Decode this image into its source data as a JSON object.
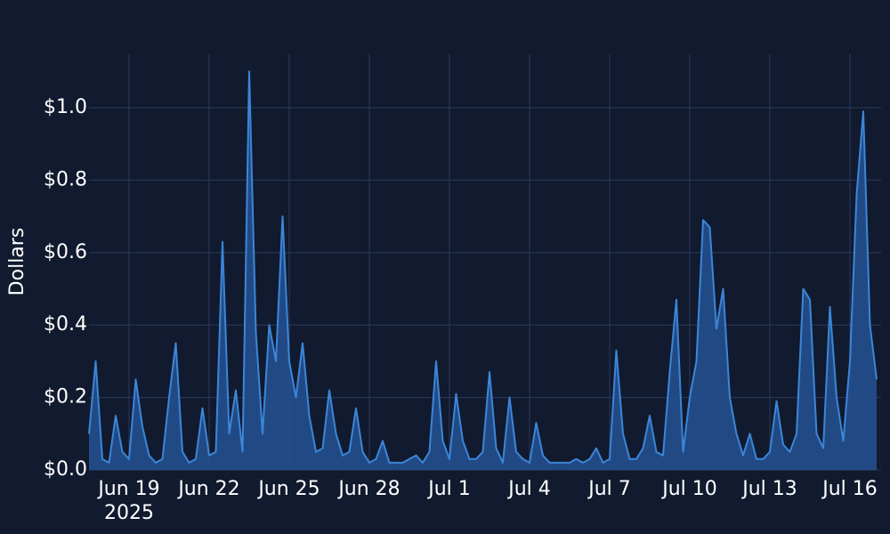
{
  "chart_data": {
    "type": "area",
    "y_label": "Dollars",
    "x_year_label": "2025",
    "color": "#3b86d8",
    "fill_color": "#24508f",
    "grid": true,
    "ylim": [
      0,
      1.15
    ],
    "yticks": [
      {
        "value": 0,
        "label": "$0.0"
      },
      {
        "value": 0.2,
        "label": "$0.2"
      },
      {
        "value": 0.4,
        "label": "$0.4"
      },
      {
        "value": 0.6,
        "label": "$0.6"
      },
      {
        "value": 0.8,
        "label": "$0.8"
      },
      {
        "value": 1.0,
        "label": "$1.0"
      }
    ],
    "xlim": [
      "2025-06-17 12:00",
      "2025-07-17 04:00"
    ],
    "xticks": [
      {
        "value": "2025-06-19",
        "label": "Jun 19"
      },
      {
        "value": "2025-06-22",
        "label": "Jun 22"
      },
      {
        "value": "2025-06-25",
        "label": "Jun 25"
      },
      {
        "value": "2025-06-28",
        "label": "Jun 28"
      },
      {
        "value": "2025-07-01",
        "label": "Jul 1"
      },
      {
        "value": "2025-07-04",
        "label": "Jul 4"
      },
      {
        "value": "2025-07-07",
        "label": "Jul 7"
      },
      {
        "value": "2025-07-10",
        "label": "Jul 10"
      },
      {
        "value": "2025-07-13",
        "label": "Jul 13"
      },
      {
        "value": "2025-07-16",
        "label": "Jul 16"
      }
    ],
    "x": [
      "2025-06-17 12:00",
      "2025-06-17 18:00",
      "2025-06-18 00:00",
      "2025-06-18 06:00",
      "2025-06-18 12:00",
      "2025-06-18 18:00",
      "2025-06-19 00:00",
      "2025-06-19 06:00",
      "2025-06-19 12:00",
      "2025-06-19 18:00",
      "2025-06-20 00:00",
      "2025-06-20 06:00",
      "2025-06-20 12:00",
      "2025-06-20 18:00",
      "2025-06-21 00:00",
      "2025-06-21 06:00",
      "2025-06-21 12:00",
      "2025-06-21 18:00",
      "2025-06-22 00:00",
      "2025-06-22 06:00",
      "2025-06-22 12:00",
      "2025-06-22 18:00",
      "2025-06-23 00:00",
      "2025-06-23 06:00",
      "2025-06-23 12:00",
      "2025-06-23 18:00",
      "2025-06-24 00:00",
      "2025-06-24 06:00",
      "2025-06-24 12:00",
      "2025-06-24 18:00",
      "2025-06-25 00:00",
      "2025-06-25 06:00",
      "2025-06-25 12:00",
      "2025-06-25 18:00",
      "2025-06-26 00:00",
      "2025-06-26 06:00",
      "2025-06-26 12:00",
      "2025-06-26 18:00",
      "2025-06-27 00:00",
      "2025-06-27 06:00",
      "2025-06-27 12:00",
      "2025-06-27 18:00",
      "2025-06-28 00:00",
      "2025-06-28 06:00",
      "2025-06-28 12:00",
      "2025-06-28 18:00",
      "2025-06-29 00:00",
      "2025-06-29 06:00",
      "2025-06-29 12:00",
      "2025-06-29 18:00",
      "2025-06-30 00:00",
      "2025-06-30 06:00",
      "2025-06-30 12:00",
      "2025-06-30 18:00",
      "2025-07-01 00:00",
      "2025-07-01 06:00",
      "2025-07-01 12:00",
      "2025-07-01 18:00",
      "2025-07-02 00:00",
      "2025-07-02 06:00",
      "2025-07-02 12:00",
      "2025-07-02 18:00",
      "2025-07-03 00:00",
      "2025-07-03 06:00",
      "2025-07-03 12:00",
      "2025-07-03 18:00",
      "2025-07-04 00:00",
      "2025-07-04 06:00",
      "2025-07-04 12:00",
      "2025-07-04 18:00",
      "2025-07-05 00:00",
      "2025-07-05 06:00",
      "2025-07-05 12:00",
      "2025-07-05 18:00",
      "2025-07-06 00:00",
      "2025-07-06 06:00",
      "2025-07-06 12:00",
      "2025-07-06 18:00",
      "2025-07-07 00:00",
      "2025-07-07 06:00",
      "2025-07-07 12:00",
      "2025-07-07 18:00",
      "2025-07-08 00:00",
      "2025-07-08 06:00",
      "2025-07-08 12:00",
      "2025-07-08 18:00",
      "2025-07-09 00:00",
      "2025-07-09 06:00",
      "2025-07-09 12:00",
      "2025-07-09 18:00",
      "2025-07-10 00:00",
      "2025-07-10 06:00",
      "2025-07-10 12:00",
      "2025-07-10 18:00",
      "2025-07-11 00:00",
      "2025-07-11 06:00",
      "2025-07-11 12:00",
      "2025-07-11 18:00",
      "2025-07-12 00:00",
      "2025-07-12 06:00",
      "2025-07-12 12:00",
      "2025-07-12 18:00",
      "2025-07-13 00:00",
      "2025-07-13 06:00",
      "2025-07-13 12:00",
      "2025-07-13 18:00",
      "2025-07-14 00:00",
      "2025-07-14 06:00",
      "2025-07-14 12:00",
      "2025-07-14 18:00",
      "2025-07-15 00:00",
      "2025-07-15 06:00",
      "2025-07-15 12:00",
      "2025-07-15 18:00",
      "2025-07-16 00:00",
      "2025-07-16 06:00",
      "2025-07-16 12:00",
      "2025-07-16 18:00",
      "2025-07-17 00:00"
    ],
    "values": [
      0.1,
      0.3,
      0.03,
      0.02,
      0.15,
      0.05,
      0.03,
      0.25,
      0.12,
      0.04,
      0.02,
      0.03,
      0.2,
      0.35,
      0.05,
      0.02,
      0.03,
      0.17,
      0.04,
      0.05,
      0.63,
      0.1,
      0.22,
      0.05,
      1.1,
      0.38,
      0.1,
      0.4,
      0.3,
      0.7,
      0.3,
      0.2,
      0.35,
      0.15,
      0.05,
      0.06,
      0.22,
      0.1,
      0.04,
      0.05,
      0.17,
      0.05,
      0.02,
      0.03,
      0.08,
      0.02,
      0.02,
      0.02,
      0.03,
      0.04,
      0.02,
      0.05,
      0.3,
      0.08,
      0.03,
      0.21,
      0.08,
      0.03,
      0.03,
      0.05,
      0.27,
      0.06,
      0.02,
      0.2,
      0.05,
      0.03,
      0.02,
      0.13,
      0.04,
      0.02,
      0.02,
      0.02,
      0.02,
      0.03,
      0.02,
      0.03,
      0.06,
      0.02,
      0.03,
      0.33,
      0.1,
      0.03,
      0.03,
      0.06,
      0.15,
      0.05,
      0.04,
      0.27,
      0.47,
      0.05,
      0.2,
      0.3,
      0.69,
      0.67,
      0.39,
      0.5,
      0.2,
      0.1,
      0.04,
      0.1,
      0.03,
      0.03,
      0.05,
      0.19,
      0.07,
      0.05,
      0.1,
      0.5,
      0.47,
      0.1,
      0.06,
      0.45,
      0.2,
      0.08,
      0.3,
      0.76,
      0.99,
      0.4,
      0.25
    ]
  }
}
